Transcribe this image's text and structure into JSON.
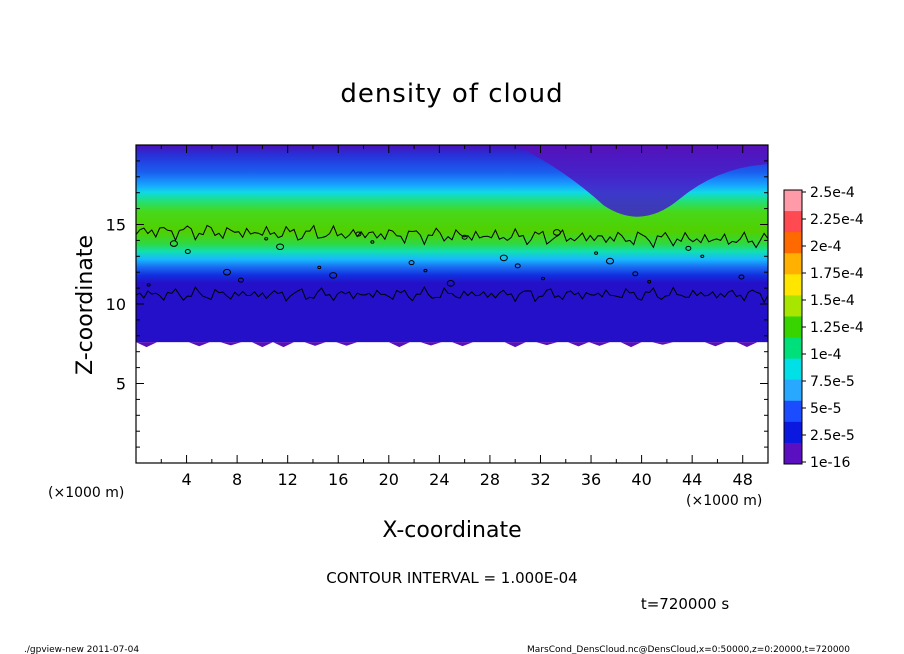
{
  "chart_data": {
    "type": "heatmap",
    "title": "density of cloud",
    "xlabel": "X-coordinate",
    "ylabel": "Z-coordinate",
    "xlim": [
      0,
      50
    ],
    "ylim": [
      0,
      20
    ],
    "x_ticks": [
      "4",
      "8",
      "12",
      "16",
      "20",
      "24",
      "28",
      "32",
      "36",
      "40",
      "44",
      "48"
    ],
    "y_ticks": [
      "15",
      "10",
      "5"
    ],
    "x_unit": "(×1000 m)",
    "y_unit": "(×1000 m)",
    "colorbar": {
      "labels": [
        "2.5e-4",
        "2.25e-4",
        "2e-4",
        "1.75e-4",
        "1.5e-4",
        "1.25e-4",
        "1e-4",
        "7.5e-5",
        "5e-5",
        "2.5e-5",
        "1e-16"
      ],
      "colors": [
        "#ff9aa8",
        "#ff4a52",
        "#ff6a00",
        "#ffb000",
        "#ffe600",
        "#a8e600",
        "#38d400",
        "#00e07a",
        "#00e0e6",
        "#28a8ff",
        "#1c4cff",
        "#0a18e0",
        "#5a10c0"
      ]
    },
    "cloud_layer": {
      "base_z": 7.6,
      "level_1e-4_lower_z": 10.6,
      "level_1e-4_upper_z": 14.6
    },
    "contour_interval": "CONTOUR INTERVAL = 1.000E-04",
    "time": "t=720000 s"
  },
  "footer": {
    "left": "./gpview-new  2011-07-04",
    "right": "MarsCond_DensCloud.nc@DensCloud,x=0:50000,z=0:20000,t=720000"
  }
}
